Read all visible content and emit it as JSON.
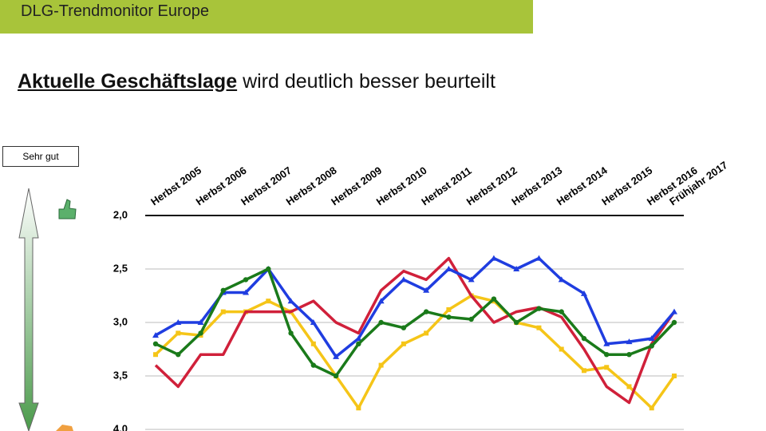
{
  "header": "DLG-Trendmonitor Europe",
  "heading": {
    "bold": "Aktuelle Geschäftslage",
    "rest": "wird deutlich besser beurteilt"
  },
  "scale_label": "Sehr gut",
  "chart_data": {
    "type": "line",
    "categories": [
      "Herbst 2005",
      null,
      "Herbst 2006",
      null,
      "Herbst 2007",
      null,
      "Herbst 2008",
      null,
      "Herbst 2009",
      null,
      "Herbst 2010",
      null,
      "Herbst 2011",
      null,
      "Herbst 2012",
      null,
      "Herbst 2013",
      null,
      "Herbst 2014",
      null,
      "Herbst 2015",
      null,
      "Herbst 2016",
      "Frühjahr 2017"
    ],
    "ylim": [
      2,
      4
    ],
    "y_reversed": true,
    "yticks": [
      {
        "value": 2,
        "label": "2,0"
      },
      {
        "value": 2.5,
        "label": "2,5"
      },
      {
        "value": 3,
        "label": "3,0"
      },
      {
        "value": 3.5,
        "label": "3,5"
      },
      {
        "value": 4,
        "label": "4,0"
      }
    ],
    "grid": true,
    "series": [
      {
        "color": "#f5c518",
        "marker": "square",
        "values": [
          3.3,
          3.1,
          3.12,
          2.9,
          2.9,
          2.8,
          2.9,
          3.2,
          3.5,
          3.8,
          3.4,
          3.2,
          3.1,
          2.88,
          2.75,
          2.8,
          3.0,
          3.05,
          3.25,
          3.45,
          3.42,
          3.6,
          3.8,
          3.5
        ]
      },
      {
        "color": "#d0203a",
        "marker": "none",
        "values": [
          3.4,
          3.6,
          3.3,
          3.3,
          2.9,
          2.9,
          2.9,
          2.8,
          3.0,
          3.1,
          2.7,
          2.52,
          2.6,
          2.4,
          2.75,
          3.0,
          2.9,
          2.86,
          2.95,
          3.25,
          3.6,
          3.75,
          3.2,
          2.9
        ]
      },
      {
        "color": "#1f3de0",
        "marker": "triangle",
        "values": [
          3.12,
          3.0,
          3.0,
          2.72,
          2.72,
          2.5,
          2.8,
          3.0,
          3.32,
          3.15,
          2.8,
          2.6,
          2.7,
          2.5,
          2.6,
          2.4,
          2.5,
          2.4,
          2.6,
          2.73,
          3.2,
          3.18,
          3.15,
          2.9
        ]
      },
      {
        "color": "#1a7a1a",
        "marker": "circle",
        "values": [
          3.2,
          3.3,
          3.1,
          2.7,
          2.6,
          2.5,
          3.1,
          3.4,
          3.5,
          3.2,
          3.0,
          3.05,
          2.9,
          2.95,
          2.97,
          2.78,
          3.0,
          2.87,
          2.9,
          3.15,
          3.3,
          3.3,
          3.22,
          3.0
        ]
      }
    ]
  }
}
